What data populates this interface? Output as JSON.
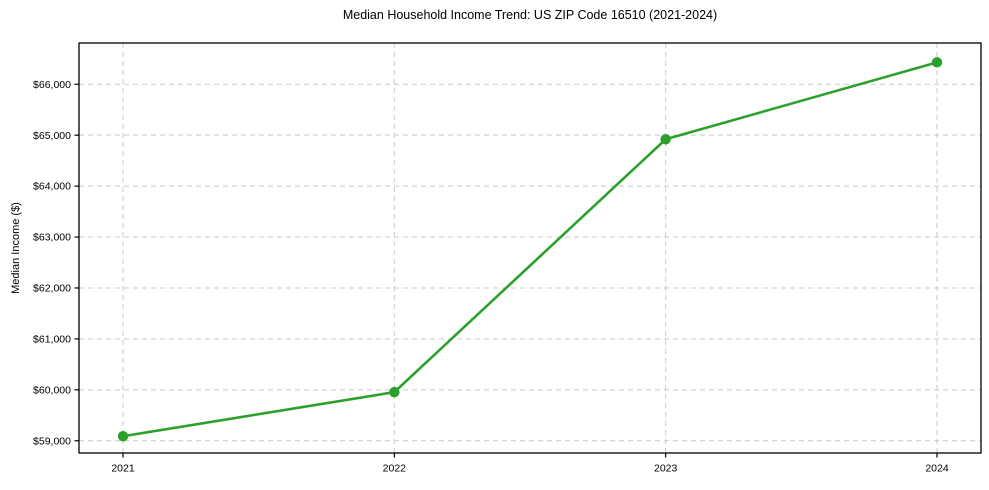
{
  "chart": {
    "title": "Median Household Income Trend: US ZIP Code 16510 (2021-2024)",
    "ylabel": "Median Income ($)"
  },
  "chart_data": {
    "type": "line",
    "title": "Median Household Income Trend: US ZIP Code 16510 (2021-2024)",
    "xlabel": "",
    "ylabel": "Median Income ($)",
    "categories": [
      "2021",
      "2022",
      "2023",
      "2024"
    ],
    "series": [
      {
        "name": "Median Household Income",
        "values": [
          59090,
          59955,
          64920,
          66430
        ]
      }
    ],
    "y_ticks": [
      59000,
      60000,
      61000,
      62000,
      63000,
      64000,
      65000,
      66000
    ],
    "y_tick_labels": [
      "$59,000",
      "$60,000",
      "$61,000",
      "$62,000",
      "$63,000",
      "$64,000",
      "$65,000",
      "$66,000"
    ],
    "ylim": [
      58760,
      66810
    ],
    "grid": true,
    "legend": "none",
    "line_color": "#2ca02c",
    "marker_color": "#2ca02c",
    "grid_color": "#c9c9c9",
    "spine_color": "#000000",
    "background_color": "#ffffff"
  }
}
